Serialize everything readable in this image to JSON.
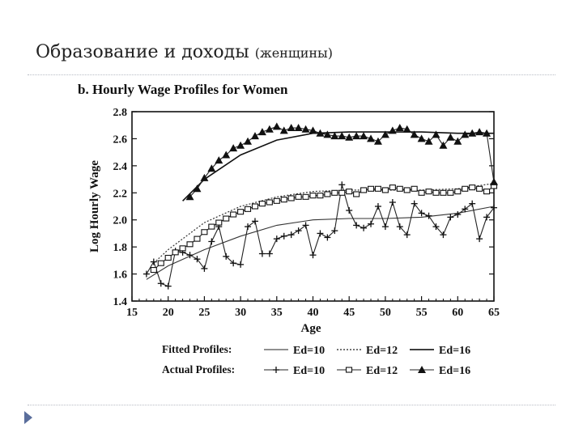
{
  "slide": {
    "title": "Образование и доходы",
    "subtitle": "(женщины)"
  },
  "chart_data": {
    "type": "line",
    "title": "b. Hourly Wage Profiles for Women",
    "xlabel": "Age",
    "ylabel": "Log Hourly Wage",
    "xlim": [
      15,
      65
    ],
    "ylim": [
      1.4,
      2.8
    ],
    "xticks": [
      15,
      20,
      25,
      30,
      35,
      40,
      45,
      50,
      55,
      60,
      65
    ],
    "yticks": [
      1.4,
      1.6,
      1.8,
      2.0,
      2.2,
      2.4,
      2.6,
      2.8
    ],
    "legend": {
      "fitted_label": "Fitted Profiles:",
      "actual_label": "Actual Profiles:",
      "entries": [
        "Ed=10",
        "Ed=12",
        "Ed=16"
      ]
    },
    "fitted": [
      {
        "name": "Ed=10",
        "x": [
          17,
          20,
          25,
          30,
          35,
          40,
          45,
          50,
          55,
          60,
          65
        ],
        "y": [
          1.56,
          1.66,
          1.78,
          1.88,
          1.96,
          2.0,
          2.01,
          2.01,
          2.02,
          2.05,
          2.1
        ]
      },
      {
        "name": "Ed=12",
        "x": [
          18,
          20,
          25,
          30,
          35,
          40,
          45,
          50,
          55,
          60,
          65
        ],
        "y": [
          1.68,
          1.78,
          1.98,
          2.1,
          2.17,
          2.21,
          2.22,
          2.22,
          2.22,
          2.23,
          2.27
        ]
      },
      {
        "name": "Ed=16",
        "x": [
          22,
          25,
          30,
          35,
          40,
          45,
          50,
          55,
          60,
          65
        ],
        "y": [
          2.14,
          2.3,
          2.48,
          2.59,
          2.64,
          2.65,
          2.65,
          2.65,
          2.64,
          2.64
        ]
      }
    ],
    "series": [
      {
        "name": "Ed=10",
        "marker": "plus",
        "x": [
          17,
          18,
          19,
          20,
          21,
          22,
          23,
          24,
          25,
          26,
          27,
          28,
          29,
          30,
          31,
          32,
          33,
          34,
          35,
          36,
          37,
          38,
          39,
          40,
          41,
          42,
          43,
          44,
          45,
          46,
          47,
          48,
          49,
          50,
          51,
          52,
          53,
          54,
          55,
          56,
          57,
          58,
          59,
          60,
          61,
          62,
          63,
          64,
          65
        ],
        "y": [
          1.6,
          1.69,
          1.53,
          1.51,
          1.77,
          1.76,
          1.74,
          1.71,
          1.64,
          1.84,
          1.95,
          1.73,
          1.68,
          1.67,
          1.95,
          1.99,
          1.75,
          1.75,
          1.86,
          1.88,
          1.89,
          1.92,
          1.96,
          1.74,
          1.9,
          1.87,
          1.92,
          2.26,
          2.07,
          1.96,
          1.94,
          1.97,
          2.1,
          1.95,
          2.13,
          1.95,
          1.89,
          2.12,
          2.05,
          2.03,
          1.95,
          1.89,
          2.02,
          2.04,
          2.08,
          2.12,
          1.86,
          2.02,
          2.09
        ]
      },
      {
        "name": "Ed=12",
        "marker": "square",
        "x": [
          18,
          19,
          20,
          21,
          22,
          23,
          24,
          25,
          26,
          27,
          28,
          29,
          30,
          31,
          32,
          33,
          34,
          35,
          36,
          37,
          38,
          39,
          40,
          41,
          42,
          43,
          44,
          45,
          46,
          47,
          48,
          49,
          50,
          51,
          52,
          53,
          54,
          55,
          56,
          57,
          58,
          59,
          60,
          61,
          62,
          63,
          64,
          65
        ],
        "y": [
          1.63,
          1.68,
          1.72,
          1.76,
          1.79,
          1.82,
          1.86,
          1.91,
          1.95,
          1.98,
          2.01,
          2.04,
          2.06,
          2.08,
          2.1,
          2.12,
          2.13,
          2.14,
          2.15,
          2.16,
          2.17,
          2.17,
          2.18,
          2.18,
          2.19,
          2.2,
          2.2,
          2.21,
          2.19,
          2.22,
          2.23,
          2.23,
          2.22,
          2.24,
          2.23,
          2.22,
          2.23,
          2.2,
          2.21,
          2.2,
          2.2,
          2.2,
          2.21,
          2.23,
          2.24,
          2.23,
          2.21,
          2.25
        ]
      },
      {
        "name": "Ed=16",
        "marker": "triangle",
        "x": [
          23,
          24,
          25,
          26,
          27,
          28,
          29,
          30,
          31,
          32,
          33,
          34,
          35,
          36,
          37,
          38,
          39,
          40,
          41,
          42,
          43,
          44,
          45,
          46,
          47,
          48,
          49,
          50,
          51,
          52,
          53,
          54,
          55,
          56,
          57,
          58,
          59,
          60,
          61,
          62,
          63,
          64,
          65
        ],
        "y": [
          2.17,
          2.23,
          2.31,
          2.38,
          2.44,
          2.48,
          2.53,
          2.55,
          2.58,
          2.62,
          2.65,
          2.67,
          2.69,
          2.66,
          2.68,
          2.68,
          2.67,
          2.66,
          2.64,
          2.63,
          2.62,
          2.62,
          2.61,
          2.62,
          2.62,
          2.6,
          2.58,
          2.63,
          2.66,
          2.68,
          2.67,
          2.63,
          2.6,
          2.58,
          2.63,
          2.55,
          2.61,
          2.58,
          2.63,
          2.64,
          2.65,
          2.64,
          2.28
        ]
      }
    ]
  }
}
